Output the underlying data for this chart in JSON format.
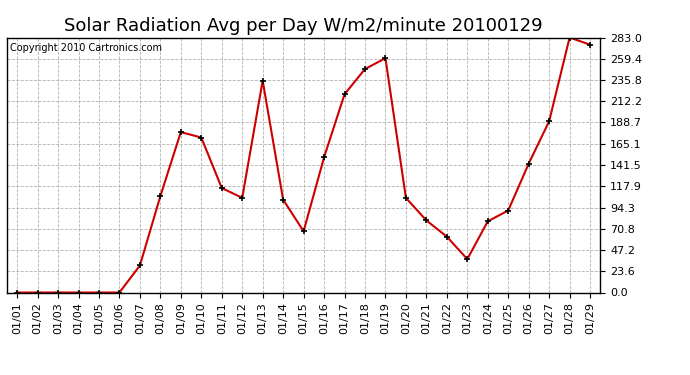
{
  "title": "Solar Radiation Avg per Day W/m2/minute 20100129",
  "copyright_text": "Copyright 2010 Cartronics.com",
  "x_labels": [
    "01/01",
    "01/02",
    "01/03",
    "01/04",
    "01/05",
    "01/06",
    "01/07",
    "01/08",
    "01/09",
    "01/10",
    "01/11",
    "01/12",
    "01/13",
    "01/14",
    "01/15",
    "01/16",
    "01/17",
    "01/18",
    "01/19",
    "01/20",
    "01/21",
    "01/22",
    "01/23",
    "01/24",
    "01/25",
    "01/26",
    "01/27",
    "01/28",
    "01/29"
  ],
  "y_values": [
    0.0,
    0.0,
    0.0,
    0.0,
    0.0,
    0.0,
    30.0,
    107.0,
    178.0,
    172.0,
    116.0,
    105.0,
    235.0,
    103.0,
    68.0,
    150.0,
    220.0,
    248.0,
    260.0,
    105.0,
    80.0,
    62.0,
    37.0,
    79.0,
    91.0,
    143.0,
    190.0,
    283.0,
    275.0
  ],
  "line_color": "#cc0000",
  "marker": "+",
  "marker_color": "#000000",
  "bg_color": "#ffffff",
  "grid_color": "#aaaaaa",
  "ylim": [
    0.0,
    283.0
  ],
  "yticks": [
    0.0,
    23.6,
    47.2,
    70.8,
    94.3,
    117.9,
    141.5,
    165.1,
    188.7,
    212.2,
    235.8,
    259.4,
    283.0
  ],
  "title_fontsize": 13,
  "tick_fontsize": 8,
  "copyright_fontsize": 7
}
